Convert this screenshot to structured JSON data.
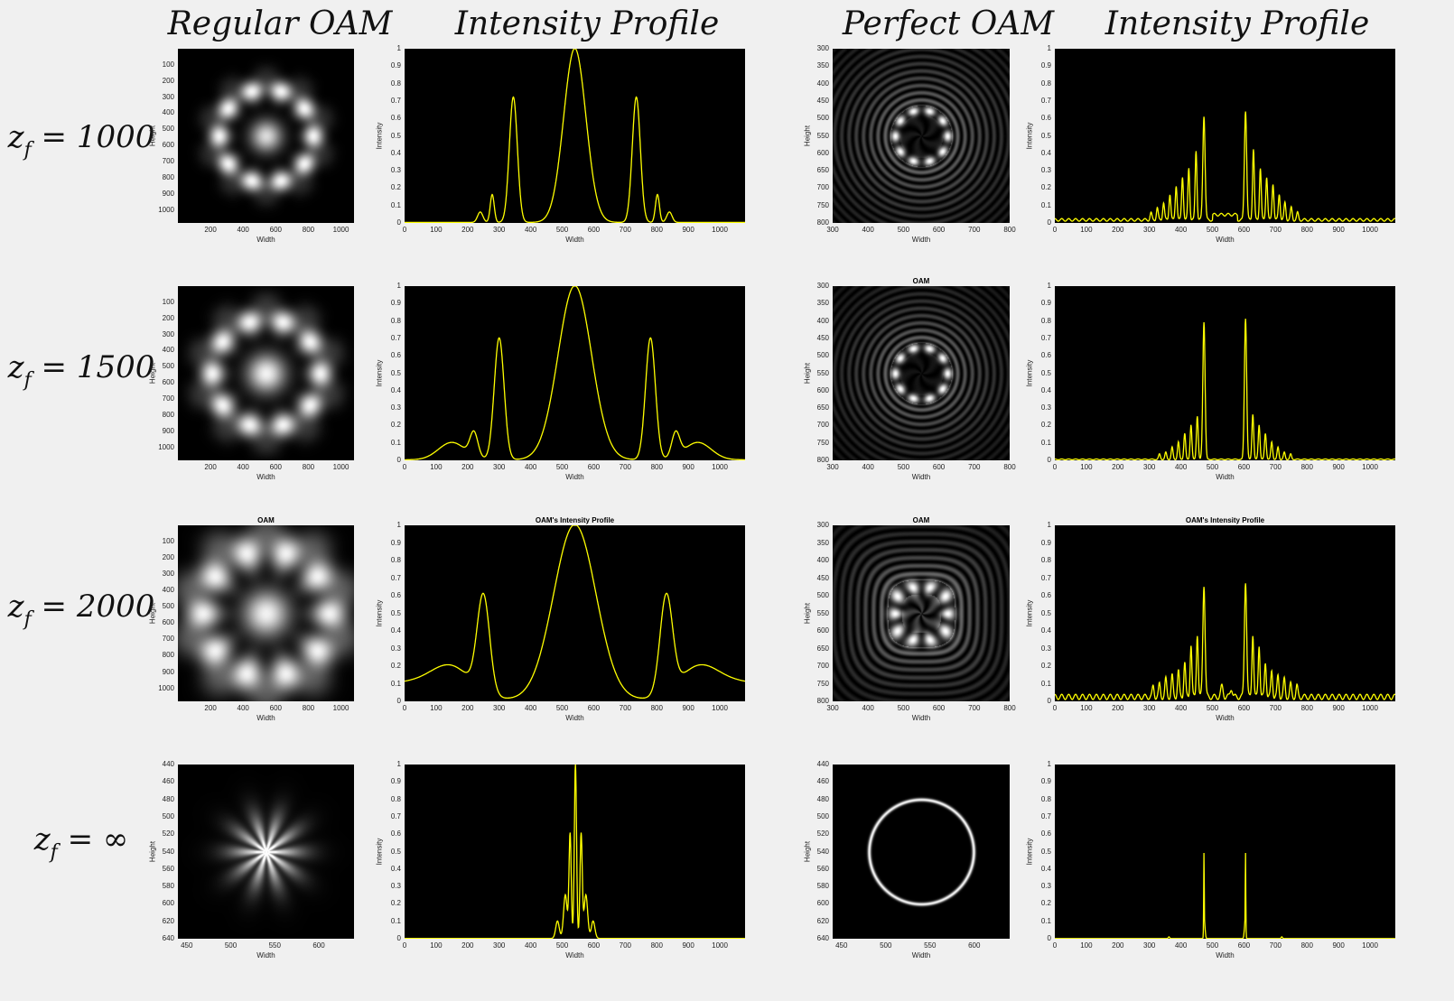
{
  "column_titles": [
    "Regular OAM",
    "Intensity Profile",
    "Perfect OAM",
    "Intensity Profile"
  ],
  "row_labels": [
    {
      "var": "z",
      "sub": "f",
      "rest": " = 1000"
    },
    {
      "var": "z",
      "sub": "f",
      "rest": " = 1500"
    },
    {
      "var": "z",
      "sub": "f",
      "rest": " = 2000"
    },
    {
      "var": "z",
      "sub": "f",
      "rest": " = ∞"
    }
  ],
  "chart_data": [
    {
      "id": "r1-regular",
      "type": "heatmap",
      "title": "",
      "xlabel": "Width",
      "ylabel": "Height",
      "xticks": [
        200,
        400,
        600,
        800,
        1000
      ],
      "yticks": [
        100,
        200,
        300,
        400,
        500,
        600,
        700,
        800,
        900,
        1000
      ],
      "xlim": [
        0,
        1080
      ],
      "ylim": [
        0,
        1080
      ],
      "pattern": {
        "kind": "regular",
        "ring_radius": 0.27,
        "ring_width": 0.06,
        "center": 0.9,
        "center_size": 0.09,
        "lobes": 10,
        "outer": 0.12,
        "bright": 0.95
      }
    },
    {
      "id": "r1-regular-profile",
      "type": "line",
      "title": "",
      "xlabel": "Width",
      "ylabel": "Intensity",
      "color": "#ffff00",
      "xticks": [
        0,
        100,
        200,
        300,
        400,
        500,
        600,
        700,
        800,
        900,
        1000
      ],
      "yticks": [
        0,
        0.1,
        0.2,
        0.3,
        0.4,
        0.5,
        0.6,
        0.7,
        0.8,
        0.9,
        1
      ],
      "xlim": [
        0,
        1080
      ],
      "ylim": [
        0,
        1
      ],
      "peaks": [
        [
          540,
          1,
          50
        ],
        [
          345,
          0.72,
          18
        ],
        [
          735,
          0.72,
          18
        ],
        [
          278,
          0.16,
          9
        ],
        [
          802,
          0.16,
          9
        ],
        [
          240,
          0.06,
          12
        ],
        [
          840,
          0.06,
          12
        ]
      ],
      "baseline": 0.003
    },
    {
      "id": "r1-perfect",
      "type": "heatmap",
      "title": "",
      "xlabel": "Width",
      "ylabel": "Height",
      "xticks": [
        300,
        400,
        500,
        600,
        700,
        800
      ],
      "yticks": [
        300,
        350,
        400,
        450,
        500,
        550,
        600,
        650,
        700,
        750,
        800
      ],
      "xlim": [
        300,
        800
      ],
      "ylim": [
        300,
        800
      ],
      "pattern": {
        "kind": "perfect",
        "ring_radius": 0.15,
        "ring_width": 0.025,
        "lobes": 10,
        "fringe_freq": 24,
        "fringe_amp": 0.45,
        "fringe_decay": 1.2,
        "inner_dark": 0.1,
        "bright": 1
      }
    },
    {
      "id": "r1-perfect-profile",
      "type": "line",
      "title": "",
      "xlabel": "Width",
      "ylabel": "Intensity",
      "color": "#ffff00",
      "xticks": [
        0,
        100,
        200,
        300,
        400,
        500,
        600,
        700,
        800,
        900,
        1000
      ],
      "yticks": [
        0,
        0.1,
        0.2,
        0.3,
        0.4,
        0.5,
        0.6,
        0.7,
        0.8,
        0.9,
        1
      ],
      "xlim": [
        0,
        1080
      ],
      "ylim": [
        0,
        1
      ],
      "peaks": [
        [
          473,
          0.6,
          5
        ],
        [
          605,
          0.63,
          5
        ],
        [
          448,
          0.4,
          4
        ],
        [
          630,
          0.41,
          4
        ],
        [
          425,
          0.3,
          4
        ],
        [
          652,
          0.3,
          4
        ],
        [
          405,
          0.25,
          4
        ],
        [
          672,
          0.25,
          4
        ],
        [
          385,
          0.2,
          4
        ],
        [
          692,
          0.21,
          4
        ],
        [
          365,
          0.15,
          4
        ],
        [
          712,
          0.15,
          4
        ],
        [
          345,
          0.1,
          4
        ],
        [
          730,
          0.1,
          4
        ],
        [
          325,
          0.07,
          4
        ],
        [
          750,
          0.07,
          4
        ],
        [
          305,
          0.04,
          4
        ],
        [
          770,
          0.04,
          4
        ]
      ],
      "ripple": {
        "amp": 0.015,
        "period": 22
      },
      "plateau": [
        [
          500,
          580,
          0.03
        ]
      ],
      "baseline": 0.01
    },
    {
      "id": "r2-regular",
      "type": "heatmap",
      "title": "",
      "xlabel": "Width",
      "ylabel": "Height",
      "xticks": [
        200,
        400,
        600,
        800,
        1000
      ],
      "yticks": [
        100,
        200,
        300,
        400,
        500,
        600,
        700,
        800,
        900,
        1000
      ],
      "xlim": [
        0,
        1080
      ],
      "ylim": [
        0,
        1080
      ],
      "pattern": {
        "kind": "regular",
        "ring_radius": 0.31,
        "ring_width": 0.07,
        "center": 1,
        "center_size": 0.11,
        "lobes": 10,
        "outer": 0.16,
        "bright": 0.95
      }
    },
    {
      "id": "r2-regular-profile",
      "type": "line",
      "title": "",
      "xlabel": "Width",
      "ylabel": "Intensity",
      "color": "#ffff00",
      "xticks": [
        0,
        100,
        200,
        300,
        400,
        500,
        600,
        700,
        800,
        900,
        1000
      ],
      "yticks": [
        0,
        0.1,
        0.2,
        0.3,
        0.4,
        0.5,
        0.6,
        0.7,
        0.8,
        0.9,
        1
      ],
      "xlim": [
        0,
        1080
      ],
      "ylim": [
        0,
        1
      ],
      "peaks": [
        [
          540,
          1,
          75
        ],
        [
          300,
          0.7,
          22
        ],
        [
          780,
          0.7,
          22
        ],
        [
          220,
          0.14,
          18
        ],
        [
          860,
          0.14,
          18
        ],
        [
          150,
          0.1,
          60
        ],
        [
          930,
          0.1,
          60
        ]
      ],
      "baseline": 0.003
    },
    {
      "id": "r2-perfect",
      "type": "heatmap",
      "title": "OAM",
      "xlabel": "Width",
      "ylabel": "Height",
      "xticks": [
        300,
        400,
        500,
        600,
        700,
        800
      ],
      "yticks": [
        300,
        350,
        400,
        450,
        500,
        550,
        600,
        650,
        700,
        750,
        800
      ],
      "xlim": [
        300,
        800
      ],
      "ylim": [
        300,
        800
      ],
      "pattern": {
        "kind": "perfect",
        "ring_radius": 0.15,
        "ring_width": 0.025,
        "lobes": 10,
        "fringe_freq": 24,
        "fringe_amp": 0.45,
        "fringe_decay": 1.4,
        "inner_dark": 0.08,
        "bright": 1
      }
    },
    {
      "id": "r2-perfect-profile",
      "type": "line",
      "title": "",
      "xlabel": "Width",
      "ylabel": "Intensity",
      "color": "#ffff00",
      "xticks": [
        0,
        100,
        200,
        300,
        400,
        500,
        600,
        700,
        800,
        900,
        1000
      ],
      "yticks": [
        0,
        0.1,
        0.2,
        0.3,
        0.4,
        0.5,
        0.6,
        0.7,
        0.8,
        0.9,
        1
      ],
      "xlim": [
        0,
        1080
      ],
      "ylim": [
        0,
        1
      ],
      "peaks": [
        [
          473,
          0.79,
          5
        ],
        [
          605,
          0.81,
          5
        ],
        [
          452,
          0.25,
          4
        ],
        [
          628,
          0.26,
          4
        ],
        [
          432,
          0.2,
          4
        ],
        [
          648,
          0.2,
          4
        ],
        [
          412,
          0.15,
          4
        ],
        [
          668,
          0.15,
          4
        ],
        [
          392,
          0.1,
          4
        ],
        [
          688,
          0.1,
          4
        ],
        [
          372,
          0.07,
          4
        ],
        [
          708,
          0.07,
          4
        ],
        [
          352,
          0.04,
          4
        ],
        [
          728,
          0.04,
          4
        ],
        [
          332,
          0.03,
          4
        ],
        [
          748,
          0.03,
          4
        ]
      ],
      "ripple": {
        "amp": 0.005,
        "period": 22
      },
      "baseline": 0.003
    },
    {
      "id": "r3-regular",
      "type": "heatmap",
      "title": "OAM",
      "xlabel": "Width",
      "ylabel": "Height",
      "xticks": [
        200,
        400,
        600,
        800,
        1000
      ],
      "yticks": [
        100,
        200,
        300,
        400,
        500,
        600,
        700,
        800,
        900,
        1000
      ],
      "xlim": [
        0,
        1080
      ],
      "ylim": [
        0,
        1080
      ],
      "pattern": {
        "kind": "regular",
        "ring_radius": 0.36,
        "ring_width": 0.1,
        "center": 1,
        "center_size": 0.13,
        "lobes": 10,
        "outer": 0.25,
        "bright": 0.95
      }
    },
    {
      "id": "r3-regular-profile",
      "type": "line",
      "title": "OAM's Intensity Profile",
      "xlabel": "Width",
      "ylabel": "Intensity",
      "color": "#ffff00",
      "xticks": [
        0,
        100,
        200,
        300,
        400,
        500,
        600,
        700,
        800,
        900,
        1000
      ],
      "yticks": [
        0,
        0.1,
        0.2,
        0.3,
        0.4,
        0.5,
        0.6,
        0.7,
        0.8,
        0.9,
        1
      ],
      "xlim": [
        0,
        1080
      ],
      "ylim": [
        0,
        1
      ],
      "peaks": [
        [
          540,
          1,
          95
        ],
        [
          250,
          0.55,
          28
        ],
        [
          830,
          0.55,
          28
        ],
        [
          150,
          0.15,
          90
        ],
        [
          930,
          0.15,
          90
        ],
        [
          0,
          0.1,
          180
        ],
        [
          1080,
          0.1,
          180
        ]
      ],
      "baseline": 0.005
    },
    {
      "id": "r3-perfect",
      "type": "heatmap",
      "title": "OAM",
      "xlabel": "Width",
      "ylabel": "Height",
      "xticks": [
        300,
        400,
        500,
        600,
        700,
        800
      ],
      "yticks": [
        300,
        350,
        400,
        450,
        500,
        550,
        600,
        650,
        700,
        750,
        800
      ],
      "xlim": [
        300,
        800
      ],
      "ylim": [
        300,
        800
      ],
      "pattern": {
        "kind": "perfect-square",
        "ring_radius": 0.15,
        "ring_width": 0.04,
        "lobes": 10,
        "fringe_freq": 22,
        "fringe_amp": 0.5,
        "fringe_decay": 1.6,
        "inner_dark": 0.25,
        "bright": 1
      }
    },
    {
      "id": "r3-perfect-profile",
      "type": "line",
      "title": "OAM's Intensity Profile",
      "xlabel": "Width",
      "ylabel": "Intensity",
      "color": "#ffff00",
      "xticks": [
        0,
        100,
        200,
        300,
        400,
        500,
        600,
        700,
        800,
        900,
        1000
      ],
      "yticks": [
        0,
        0.1,
        0.2,
        0.3,
        0.4,
        0.5,
        0.6,
        0.7,
        0.8,
        0.9,
        1
      ],
      "xlim": [
        0,
        1080
      ],
      "ylim": [
        0,
        1
      ],
      "peaks": [
        [
          473,
          0.64,
          5
        ],
        [
          605,
          0.66,
          5
        ],
        [
          452,
          0.36,
          4
        ],
        [
          628,
          0.36,
          4
        ],
        [
          432,
          0.3,
          4
        ],
        [
          648,
          0.3,
          4
        ],
        [
          412,
          0.2,
          4
        ],
        [
          668,
          0.2,
          4
        ],
        [
          392,
          0.15,
          4
        ],
        [
          688,
          0.15,
          4
        ],
        [
          372,
          0.12,
          4
        ],
        [
          708,
          0.12,
          4
        ],
        [
          352,
          0.1,
          4
        ],
        [
          728,
          0.1,
          4
        ],
        [
          332,
          0.07,
          4
        ],
        [
          748,
          0.07,
          4
        ],
        [
          312,
          0.06,
          4
        ],
        [
          768,
          0.06,
          4
        ],
        [
          530,
          0.06,
          5
        ],
        [
          560,
          0.05,
          5
        ]
      ],
      "ripple": {
        "amp": 0.03,
        "period": 22
      },
      "baseline": 0.01
    },
    {
      "id": "r4-regular",
      "type": "heatmap",
      "title": "",
      "xlabel": "Width",
      "ylabel": "Height",
      "xticks": [
        450,
        500,
        550,
        600
      ],
      "yticks": [
        440,
        460,
        480,
        500,
        520,
        540,
        560,
        580,
        600,
        620,
        640
      ],
      "xlim": [
        440,
        640
      ],
      "ylim": [
        440,
        640
      ],
      "pattern": {
        "kind": "star",
        "ring_radius": 0.2,
        "ring_width": 0.12,
        "lobes": 10,
        "center": 1,
        "center_size": 0.04,
        "bright": 1
      }
    },
    {
      "id": "r4-regular-profile",
      "type": "line",
      "title": "",
      "xlabel": "Width",
      "ylabel": "Intensity",
      "color": "#ffff00",
      "xticks": [
        0,
        100,
        200,
        300,
        400,
        500,
        600,
        700,
        800,
        900,
        1000
      ],
      "yticks": [
        0,
        0.1,
        0.2,
        0.3,
        0.4,
        0.5,
        0.6,
        0.7,
        0.8,
        0.9,
        1
      ],
      "xlim": [
        0,
        1080
      ],
      "ylim": [
        0,
        1
      ],
      "peaks": [
        [
          542,
          1,
          5
        ],
        [
          525,
          0.6,
          5
        ],
        [
          560,
          0.6,
          5
        ],
        [
          510,
          0.25,
          8
        ],
        [
          575,
          0.25,
          8
        ],
        [
          485,
          0.1,
          8
        ],
        [
          598,
          0.1,
          8
        ]
      ],
      "baseline": 0.002
    },
    {
      "id": "r4-perfect",
      "type": "heatmap",
      "title": "",
      "xlabel": "Width",
      "ylabel": "Height",
      "xticks": [
        450,
        500,
        550,
        600
      ],
      "yticks": [
        440,
        460,
        480,
        500,
        520,
        540,
        560,
        580,
        600,
        620,
        640
      ],
      "xlim": [
        440,
        640
      ],
      "ylim": [
        440,
        640
      ],
      "pattern": {
        "kind": "thin-ring",
        "ring_radius": 0.3,
        "ring_width": 0.01,
        "bright": 1
      }
    },
    {
      "id": "r4-perfect-profile",
      "type": "line",
      "title": "",
      "xlabel": "Width",
      "ylabel": "Intensity",
      "color": "#ffff00",
      "xticks": [
        0,
        100,
        200,
        300,
        400,
        500,
        600,
        700,
        800,
        900,
        1000
      ],
      "yticks": [
        0,
        0.1,
        0.2,
        0.3,
        0.4,
        0.5,
        0.6,
        0.7,
        0.8,
        0.9,
        1
      ],
      "xlim": [
        0,
        1080
      ],
      "ylim": [
        0,
        1
      ],
      "peaks": [
        [
          473,
          0.44,
          1.2
        ],
        [
          605,
          0.44,
          1.2
        ],
        [
          475,
          0.08,
          3
        ],
        [
          603,
          0.08,
          3
        ],
        [
          362,
          0.01,
          3
        ],
        [
          720,
          0.01,
          3
        ]
      ],
      "baseline": 0.001
    }
  ]
}
